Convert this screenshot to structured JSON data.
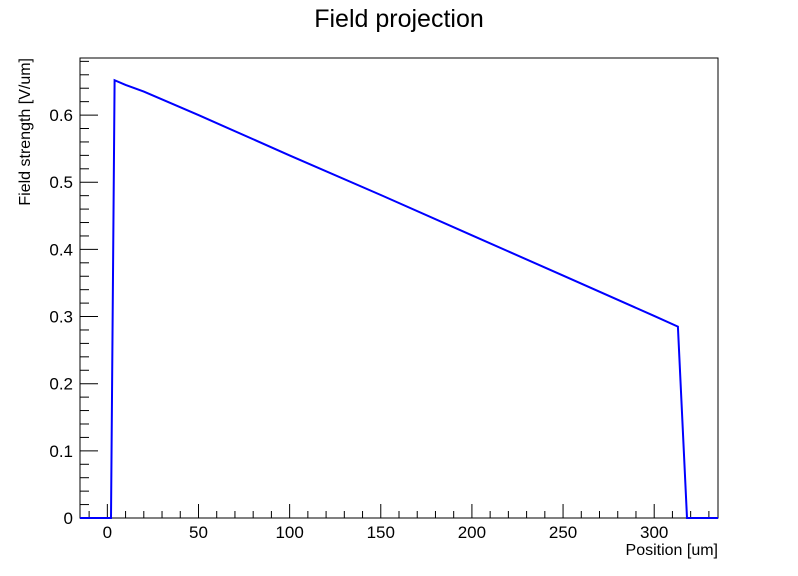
{
  "chart_data": {
    "type": "line",
    "title": "Field projection",
    "xlabel": "Position [um]",
    "ylabel": "Field strength [V/um]",
    "xlim": [
      -15,
      335
    ],
    "ylim": [
      0,
      0.685
    ],
    "x_ticks": [
      "0",
      "50",
      "100",
      "150",
      "200",
      "250",
      "300"
    ],
    "y_ticks": [
      "0",
      "0.1",
      "0.2",
      "0.3",
      "0.4",
      "0.5",
      "0.6"
    ],
    "grid": false,
    "legend": "none",
    "line_color": "#0000ff",
    "series": [
      {
        "points": [
          [
            -15,
            0
          ],
          [
            0,
            0
          ],
          [
            2,
            0
          ],
          [
            4,
            0.652
          ],
          [
            10,
            0.645
          ],
          [
            20,
            0.635
          ],
          [
            50,
            0.6
          ],
          [
            100,
            0.54
          ],
          [
            150,
            0.481
          ],
          [
            200,
            0.421
          ],
          [
            250,
            0.361
          ],
          [
            300,
            0.301
          ],
          [
            313,
            0.285
          ],
          [
            318,
            0
          ],
          [
            335,
            0
          ]
        ]
      }
    ]
  }
}
